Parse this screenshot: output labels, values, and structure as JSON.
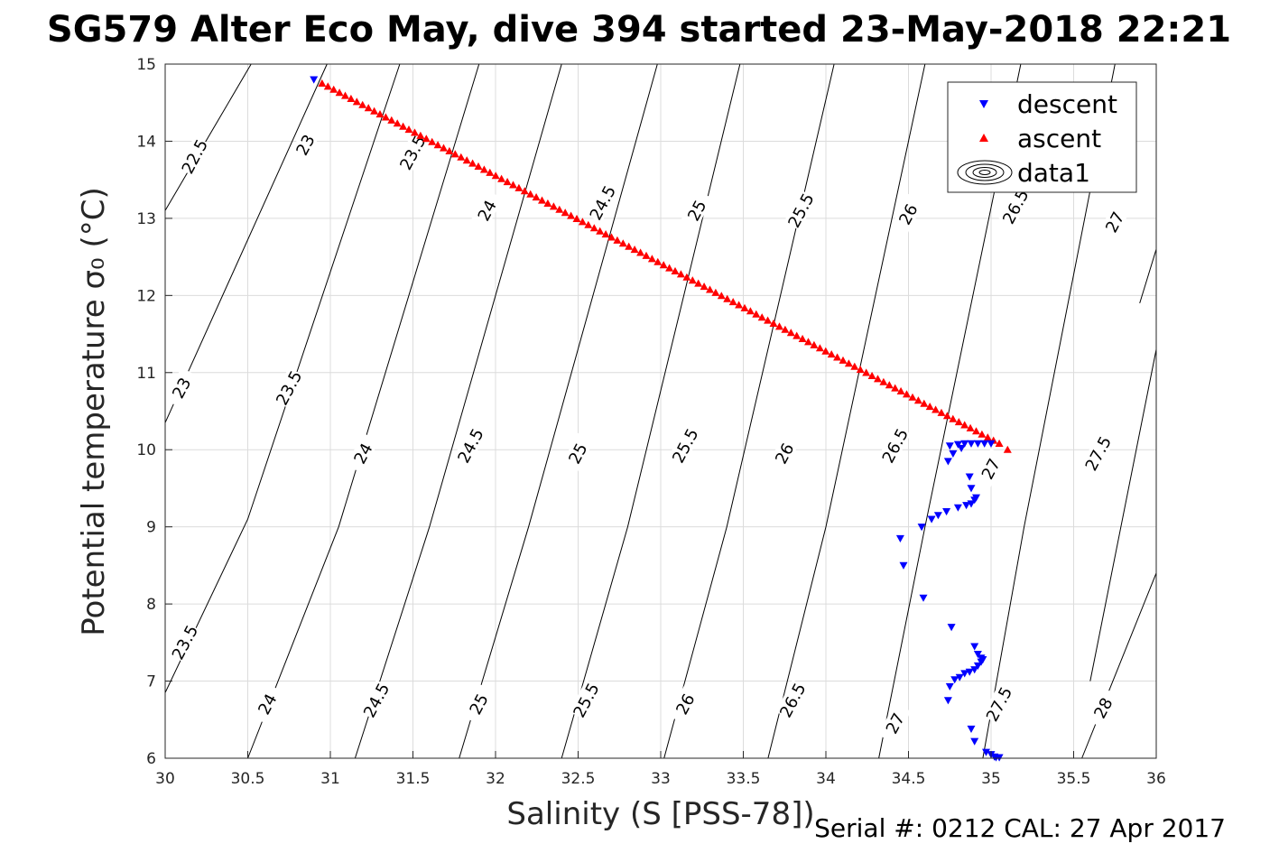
{
  "header": {
    "title": "SG579 Alter Eco May, dive 394 started 23-May-2018 22:21"
  },
  "footer": {
    "serial": "Serial #: 0212  CAL: 27 Apr 2017"
  },
  "colors": {
    "descent": "#0000ff",
    "ascent": "#ff0000",
    "contour": "#000000",
    "grid": "#dcdcdc"
  },
  "chart_data": {
    "type": "scatter",
    "title": "SG579 Alter Eco May, dive 394 started 23-May-2018 22:21",
    "xlabel": "Salinity (S [PSS-78])",
    "ylabel": "Potential temperature σ₀ (°C)",
    "xlim": [
      30,
      36
    ],
    "ylim": [
      6,
      15
    ],
    "xticks": [
      "30",
      "30.5",
      "31",
      "31.5",
      "32",
      "32.5",
      "33",
      "33.5",
      "34",
      "34.5",
      "35",
      "35.5",
      "36"
    ],
    "yticks": [
      "6",
      "7",
      "8",
      "9",
      "10",
      "11",
      "12",
      "13",
      "14",
      "15"
    ],
    "grid": true,
    "legend": {
      "placement": "top-right",
      "entries": [
        "descent",
        "ascent",
        "data1"
      ]
    },
    "contours": {
      "description": "density sigma isopycnals",
      "levels": [
        {
          "label": "22.5",
          "points": [
            [
              30,
              13.1
            ],
            [
              30.52,
              15
            ]
          ]
        },
        {
          "label": "23",
          "points": [
            [
              30,
              10.35
            ],
            [
              30.98,
              15
            ]
          ]
        },
        {
          "label": "23.5",
          "points": [
            [
              30,
              6.85
            ],
            [
              30.5,
              9.1
            ],
            [
              31.42,
              15
            ]
          ]
        },
        {
          "label": "24",
          "points": [
            [
              30.5,
              6
            ],
            [
              31.05,
              9
            ],
            [
              31.9,
              15
            ]
          ]
        },
        {
          "label": "24.5",
          "points": [
            [
              31.15,
              6
            ],
            [
              31.6,
              9
            ],
            [
              32.4,
              15
            ]
          ]
        },
        {
          "label": "25",
          "points": [
            [
              31.78,
              6
            ],
            [
              32.2,
              9
            ],
            [
              32.98,
              15
            ]
          ]
        },
        {
          "label": "25.5",
          "points": [
            [
              32.4,
              6
            ],
            [
              32.8,
              9
            ],
            [
              33.48,
              15
            ]
          ]
        },
        {
          "label": "26",
          "points": [
            [
              33.02,
              6
            ],
            [
              33.4,
              9
            ],
            [
              34.05,
              15
            ]
          ]
        },
        {
          "label": "26.5",
          "points": [
            [
              33.65,
              6
            ],
            [
              34,
              9
            ],
            [
              34.6,
              15
            ]
          ]
        },
        {
          "label": "27",
          "points": [
            [
              34.32,
              6
            ],
            [
              34.6,
              9
            ],
            [
              35.18,
              15
            ]
          ]
        },
        {
          "label": "27.5",
          "points": [
            [
              34.95,
              6
            ],
            [
              35.2,
              9
            ],
            [
              35.75,
              15
            ]
          ]
        },
        {
          "label": "28",
          "points": [
            [
              35.55,
              6
            ],
            [
              36,
              8.4
            ]
          ]
        },
        {
          "label": "",
          "points": [
            [
              35.6,
              7
            ],
            [
              36,
              11.3
            ]
          ]
        },
        {
          "label": "",
          "points": [
            [
              35.9,
              11.9
            ],
            [
              36,
              12.6
            ]
          ]
        }
      ],
      "labels": [
        {
          "text": "22.5",
          "x": 30.18,
          "y": 13.8
        },
        {
          "text": "23",
          "x": 30.85,
          "y": 13.95
        },
        {
          "text": "23.5",
          "x": 31.5,
          "y": 13.85
        },
        {
          "text": "24",
          "x": 31.95,
          "y": 13.1
        },
        {
          "text": "24.5",
          "x": 32.65,
          "y": 13.2
        },
        {
          "text": "25",
          "x": 33.22,
          "y": 13.1
        },
        {
          "text": "25.5",
          "x": 33.85,
          "y": 13.1
        },
        {
          "text": "26",
          "x": 34.5,
          "y": 13.05
        },
        {
          "text": "26.5",
          "x": 35.15,
          "y": 13.15
        },
        {
          "text": "27",
          "x": 35.75,
          "y": 12.95
        },
        {
          "text": "23",
          "x": 30.1,
          "y": 10.8
        },
        {
          "text": "23.5",
          "x": 30.75,
          "y": 10.8
        },
        {
          "text": "24",
          "x": 31.2,
          "y": 9.95
        },
        {
          "text": "24.5",
          "x": 31.85,
          "y": 10.05
        },
        {
          "text": "25",
          "x": 32.5,
          "y": 9.95
        },
        {
          "text": "25.5",
          "x": 33.15,
          "y": 10.05
        },
        {
          "text": "26",
          "x": 33.75,
          "y": 9.95
        },
        {
          "text": "26.5",
          "x": 34.42,
          "y": 10.05
        },
        {
          "text": "27",
          "x": 35,
          "y": 9.75
        },
        {
          "text": "27.5",
          "x": 35.65,
          "y": 9.95
        },
        {
          "text": "23.5",
          "x": 30.12,
          "y": 7.5
        },
        {
          "text": "24",
          "x": 30.62,
          "y": 6.7
        },
        {
          "text": "24.5",
          "x": 31.28,
          "y": 6.75
        },
        {
          "text": "25",
          "x": 31.9,
          "y": 6.7
        },
        {
          "text": "25.5",
          "x": 32.55,
          "y": 6.75
        },
        {
          "text": "26",
          "x": 33.15,
          "y": 6.7
        },
        {
          "text": "26.5",
          "x": 33.8,
          "y": 6.75
        },
        {
          "text": "27",
          "x": 34.42,
          "y": 6.45
        },
        {
          "text": "27.5",
          "x": 35.05,
          "y": 6.7
        },
        {
          "text": "28",
          "x": 35.68,
          "y": 6.65
        }
      ]
    },
    "series": [
      {
        "name": "descent",
        "marker": "triangle-down",
        "points": [
          [
            30.9,
            14.8
          ],
          [
            34.75,
            10.05
          ],
          [
            34.8,
            10.07
          ],
          [
            34.84,
            10.08
          ],
          [
            34.88,
            10.08
          ],
          [
            34.92,
            10.08
          ],
          [
            34.96,
            10.08
          ],
          [
            35.0,
            10.08
          ],
          [
            34.74,
            9.85
          ],
          [
            34.77,
            9.95
          ],
          [
            34.82,
            10.02
          ],
          [
            34.87,
            9.65
          ],
          [
            34.88,
            9.5
          ],
          [
            34.9,
            9.35
          ],
          [
            34.91,
            9.38
          ],
          [
            34.88,
            9.3
          ],
          [
            34.85,
            9.28
          ],
          [
            34.8,
            9.25
          ],
          [
            34.73,
            9.2
          ],
          [
            34.68,
            9.15
          ],
          [
            34.64,
            9.1
          ],
          [
            34.58,
            9.0
          ],
          [
            34.45,
            8.85
          ],
          [
            34.47,
            8.5
          ],
          [
            34.59,
            8.08
          ],
          [
            34.76,
            7.7
          ],
          [
            34.9,
            7.45
          ],
          [
            34.92,
            7.35
          ],
          [
            34.94,
            7.3
          ],
          [
            34.95,
            7.28
          ],
          [
            34.94,
            7.25
          ],
          [
            34.92,
            7.2
          ],
          [
            34.9,
            7.15
          ],
          [
            34.87,
            7.12
          ],
          [
            34.84,
            7.1
          ],
          [
            34.81,
            7.05
          ],
          [
            34.78,
            7.02
          ],
          [
            34.75,
            6.93
          ],
          [
            34.74,
            6.75
          ],
          [
            34.88,
            6.38
          ],
          [
            34.9,
            6.22
          ],
          [
            34.97,
            6.08
          ],
          [
            35.0,
            6.05
          ],
          [
            35.02,
            6.02
          ],
          [
            35.03,
            6.01
          ],
          [
            35.05,
            6.01
          ]
        ]
      },
      {
        "name": "ascent",
        "marker": "triangle-up",
        "line": {
          "from": [
            30.95,
            14.75
          ],
          "to": [
            35.05,
            10.08
          ],
          "count": 118
        },
        "extra": [
          [
            35.1,
            10.0
          ]
        ]
      },
      {
        "name": "data1",
        "marker": "contour-glyph",
        "points": []
      }
    ]
  }
}
